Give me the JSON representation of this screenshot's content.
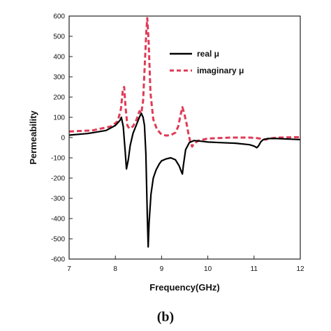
{
  "chart_data": {
    "type": "line",
    "xlabel": "Frequency(GHz)",
    "ylabel": "Permeability",
    "xlim": [
      7,
      12
    ],
    "ylim": [
      -600,
      600
    ],
    "xticks": [
      7,
      8,
      9,
      10,
      11,
      12
    ],
    "yticks": [
      -600,
      -500,
      -400,
      -300,
      -200,
      -100,
      0,
      100,
      200,
      300,
      400,
      500,
      600
    ],
    "legend_position": "top-right",
    "panel_label": "(b)",
    "series": [
      {
        "name": "real μ",
        "color": "#000000",
        "style": "solid",
        "x": [
          7.0,
          7.4,
          7.8,
          8.0,
          8.1,
          8.13,
          8.17,
          8.21,
          8.24,
          8.28,
          8.32,
          8.38,
          8.45,
          8.52,
          8.56,
          8.6,
          8.63,
          8.66,
          8.69,
          8.71,
          8.73,
          8.77,
          8.82,
          8.88,
          8.95,
          9.0,
          9.1,
          9.2,
          9.3,
          9.38,
          9.43,
          9.45,
          9.47,
          9.52,
          9.6,
          9.7,
          9.85,
          10.0,
          10.3,
          10.6,
          10.9,
          11.0,
          11.06,
          11.1,
          11.15,
          11.2,
          11.3,
          11.5,
          11.8,
          12.0
        ],
        "y": [
          12,
          20,
          35,
          60,
          85,
          100,
          55,
          -60,
          -155,
          -110,
          -40,
          20,
          60,
          100,
          120,
          100,
          60,
          -80,
          -380,
          -540,
          -420,
          -280,
          -200,
          -160,
          -130,
          -115,
          -105,
          -100,
          -110,
          -140,
          -170,
          -180,
          -140,
          -60,
          -25,
          -15,
          -18,
          -22,
          -25,
          -28,
          -35,
          -42,
          -50,
          -40,
          -20,
          -10,
          -5,
          -5,
          -8,
          -10
        ]
      },
      {
        "name": "imaginary μ",
        "color": "#e03a55",
        "style": "dashed",
        "x": [
          7.0,
          7.5,
          7.9,
          8.05,
          8.12,
          8.16,
          8.19,
          8.22,
          8.26,
          8.3,
          8.38,
          8.46,
          8.52,
          8.56,
          8.6,
          8.64,
          8.67,
          8.69,
          8.72,
          8.76,
          8.82,
          8.9,
          9.0,
          9.1,
          9.2,
          9.3,
          9.36,
          9.41,
          9.45,
          9.49,
          9.54,
          9.58,
          9.62,
          9.66,
          9.7,
          9.8,
          10.0,
          10.5,
          10.9,
          11.05,
          11.15,
          11.25,
          11.35,
          11.5,
          12.0
        ],
        "y": [
          30,
          35,
          55,
          80,
          140,
          230,
          250,
          150,
          60,
          45,
          55,
          90,
          130,
          120,
          180,
          380,
          530,
          590,
          470,
          220,
          90,
          40,
          15,
          10,
          12,
          25,
          55,
          110,
          150,
          120,
          70,
          20,
          -20,
          -45,
          -30,
          -15,
          -5,
          0,
          0,
          -2,
          -6,
          -10,
          -4,
          0,
          2
        ]
      }
    ]
  }
}
